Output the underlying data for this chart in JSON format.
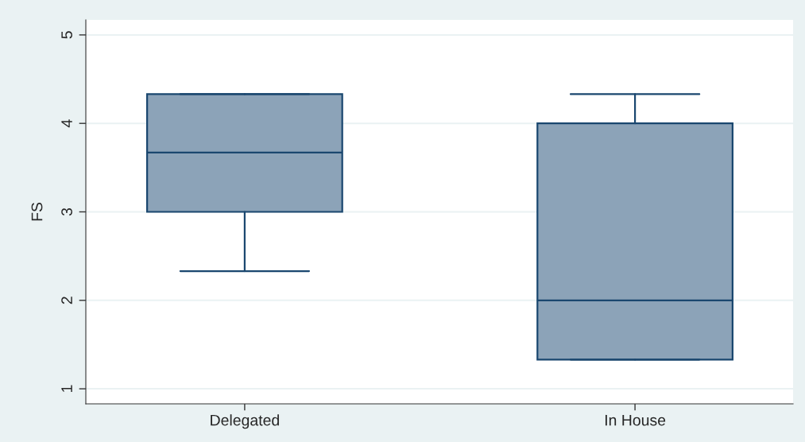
{
  "chart_data": {
    "type": "box",
    "ylabel": "FS",
    "categories": [
      "Delegated",
      "In House"
    ],
    "boxes": [
      {
        "low": 2.33,
        "q1": 3,
        "median": 3.67,
        "q3": 4.33,
        "high": 4.33
      },
      {
        "low": 1.33,
        "q1": 1.33,
        "median": 2,
        "q3": 4,
        "high": 4.33
      }
    ],
    "color": "#8ca3b8",
    "ylim": [
      0.83,
      5.17
    ],
    "yticks": [
      1,
      2,
      3,
      4,
      5
    ],
    "grid": "y"
  }
}
